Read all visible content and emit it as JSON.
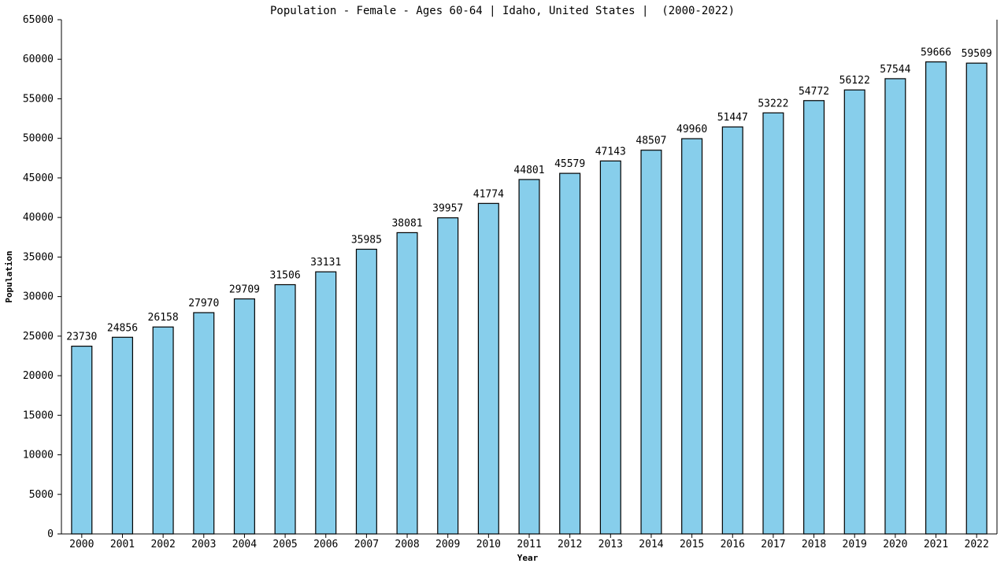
{
  "chart_data": {
    "type": "bar",
    "title": "Population - Female - Ages 60-64 | Idaho, United States |  (2000-2022)",
    "xlabel": "Year",
    "ylabel": "Population",
    "categories": [
      "2000",
      "2001",
      "2002",
      "2003",
      "2004",
      "2005",
      "2006",
      "2007",
      "2008",
      "2009",
      "2010",
      "2011",
      "2012",
      "2013",
      "2014",
      "2015",
      "2016",
      "2017",
      "2018",
      "2019",
      "2020",
      "2021",
      "2022"
    ],
    "values": [
      23730,
      24856,
      26158,
      27970,
      29709,
      31506,
      33131,
      35985,
      38081,
      39957,
      41774,
      44801,
      45579,
      47143,
      48507,
      49960,
      51447,
      53222,
      54772,
      56122,
      57544,
      59666,
      59509
    ],
    "ylim": [
      0,
      65000
    ],
    "yticks": [
      0,
      5000,
      10000,
      15000,
      20000,
      25000,
      30000,
      35000,
      40000,
      45000,
      50000,
      55000,
      60000,
      65000
    ],
    "grid": false,
    "legend": "none",
    "bar_color": "#87ceeb",
    "edge_color": "#000000"
  }
}
